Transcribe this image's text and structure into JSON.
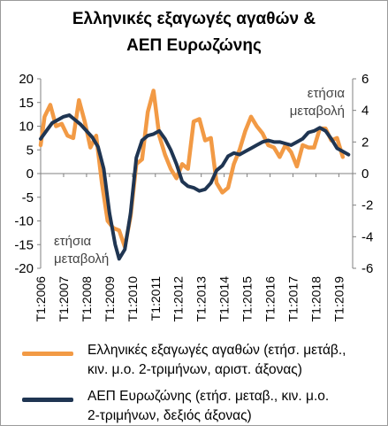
{
  "chart_data": {
    "type": "line",
    "title_lines": [
      "Ελληνικές εξαγωγές αγαθών &",
      "ΑΕΠ Ευρωζώνης"
    ],
    "x_tick_labels": [
      "T1:2006",
      "T1:2007",
      "T1:2008",
      "T1:2009",
      "T1:2010",
      "T1:2011",
      "T1:2012",
      "T1:2013",
      "T1:2014",
      "T1:2015",
      "T1:2016",
      "T1:2017",
      "T1:2018",
      "T1:2019"
    ],
    "x_range": [
      2006.0,
      2019.6
    ],
    "left_axis": {
      "label_lines": [
        "ετήσια",
        "μεταβολή"
      ],
      "ylim": [
        -20,
        20
      ],
      "ticks": [
        20,
        15,
        10,
        5,
        0,
        -5,
        -10,
        -15,
        -20
      ]
    },
    "right_axis": {
      "label_lines": [
        "ετήσια",
        "μεταβολή"
      ],
      "ylim": [
        -6,
        6
      ],
      "ticks": [
        6,
        4,
        2,
        0,
        -2,
        -4,
        -6
      ]
    },
    "grid": false,
    "series": [
      {
        "name": "Ελληνικές εξαγωγές αγαθών (ετήσ. μετάβ., κιν. μ.ο. 2-τριμήνων, αριστ. άξονας)",
        "axis": "left",
        "color": "#f29a45",
        "points": [
          [
            2006.0,
            6
          ],
          [
            2006.17,
            12
          ],
          [
            2006.42,
            14.5
          ],
          [
            2006.67,
            10
          ],
          [
            2006.92,
            10.5
          ],
          [
            2007.17,
            8
          ],
          [
            2007.42,
            7.5
          ],
          [
            2007.67,
            15.5
          ],
          [
            2007.92,
            11
          ],
          [
            2008.17,
            5.5
          ],
          [
            2008.42,
            8
          ],
          [
            2008.67,
            -2
          ],
          [
            2008.92,
            -10
          ],
          [
            2009.17,
            -11.5
          ],
          [
            2009.42,
            -12
          ],
          [
            2009.67,
            -15.5
          ],
          [
            2009.92,
            -9
          ],
          [
            2010.17,
            2
          ],
          [
            2010.42,
            3
          ],
          [
            2010.67,
            13
          ],
          [
            2010.92,
            17.5
          ],
          [
            2011.17,
            8
          ],
          [
            2011.42,
            4
          ],
          [
            2011.67,
            1
          ],
          [
            2011.92,
            -1
          ],
          [
            2012.17,
            2
          ],
          [
            2012.42,
            1
          ],
          [
            2012.67,
            11
          ],
          [
            2012.92,
            11.5
          ],
          [
            2013.17,
            7
          ],
          [
            2013.42,
            7.5
          ],
          [
            2013.67,
            -2
          ],
          [
            2013.92,
            -4
          ],
          [
            2014.17,
            -3
          ],
          [
            2014.42,
            2
          ],
          [
            2014.67,
            5
          ],
          [
            2014.92,
            9
          ],
          [
            2015.17,
            12
          ],
          [
            2015.42,
            10
          ],
          [
            2015.67,
            8.5
          ],
          [
            2015.92,
            6
          ],
          [
            2016.17,
            5.5
          ],
          [
            2016.42,
            3.5
          ],
          [
            2016.67,
            6
          ],
          [
            2016.92,
            4.5
          ],
          [
            2017.17,
            1.5
          ],
          [
            2017.42,
            6
          ],
          [
            2017.67,
            5.5
          ],
          [
            2017.92,
            5.5
          ],
          [
            2018.17,
            9.5
          ],
          [
            2018.42,
            9.5
          ],
          [
            2018.67,
            7
          ],
          [
            2018.92,
            7.5
          ],
          [
            2019.17,
            3.5
          ]
        ]
      },
      {
        "name": "ΑΕΠ Ευρωζώνης (ετήσ. μεταβ., κιν. μ.ο. 2-τριμήνων, δεξιός άξονας)",
        "axis": "right",
        "color": "#1f3552",
        "points": [
          [
            2006.0,
            2.2
          ],
          [
            2006.25,
            2.7
          ],
          [
            2006.5,
            3.2
          ],
          [
            2006.75,
            3.4
          ],
          [
            2007.0,
            3.6
          ],
          [
            2007.25,
            3.7
          ],
          [
            2007.5,
            3.4
          ],
          [
            2007.75,
            3.1
          ],
          [
            2008.0,
            2.7
          ],
          [
            2008.25,
            2.3
          ],
          [
            2008.5,
            1.7
          ],
          [
            2008.75,
            0.3
          ],
          [
            2009.0,
            -2.5
          ],
          [
            2009.25,
            -4.5
          ],
          [
            2009.42,
            -5.4
          ],
          [
            2009.67,
            -4.8
          ],
          [
            2009.92,
            -2.5
          ],
          [
            2010.17,
            1.0
          ],
          [
            2010.42,
            2.1
          ],
          [
            2010.67,
            2.4
          ],
          [
            2010.92,
            2.5
          ],
          [
            2011.17,
            2.7
          ],
          [
            2011.42,
            2.2
          ],
          [
            2011.67,
            1.5
          ],
          [
            2011.92,
            0.6
          ],
          [
            2012.17,
            -0.5
          ],
          [
            2012.42,
            -0.8
          ],
          [
            2012.67,
            -0.9
          ],
          [
            2012.92,
            -1.1
          ],
          [
            2013.17,
            -1.0
          ],
          [
            2013.42,
            -0.6
          ],
          [
            2013.67,
            0.2
          ],
          [
            2013.92,
            0.5
          ],
          [
            2014.17,
            1.1
          ],
          [
            2014.42,
            1.3
          ],
          [
            2014.67,
            1.2
          ],
          [
            2014.92,
            1.4
          ],
          [
            2015.17,
            1.6
          ],
          [
            2015.42,
            1.8
          ],
          [
            2015.67,
            2.0
          ],
          [
            2015.92,
            2.1
          ],
          [
            2016.17,
            2.0
          ],
          [
            2016.42,
            2.0
          ],
          [
            2016.67,
            1.9
          ],
          [
            2016.92,
            1.8
          ],
          [
            2017.17,
            2.0
          ],
          [
            2017.42,
            2.2
          ],
          [
            2017.67,
            2.6
          ],
          [
            2017.92,
            2.7
          ],
          [
            2018.17,
            2.9
          ],
          [
            2018.42,
            2.7
          ],
          [
            2018.67,
            2.2
          ],
          [
            2018.92,
            1.6
          ],
          [
            2019.17,
            1.4
          ],
          [
            2019.42,
            1.2
          ]
        ]
      }
    ],
    "legend": [
      {
        "color": "#f29a45",
        "text": "Ελληνικές εξαγωγές αγαθών (ετήσ. μετάβ.,\nκιν. μ.ο. 2-τριμήνων, αριστ. άξονας)"
      },
      {
        "color": "#1f3552",
        "text": "ΑΕΠ Ευρωζώνης (ετήσ. μεταβ., κιν. μ.ο.\n2-τριμήνων, δεξιός άξονας)"
      }
    ]
  }
}
